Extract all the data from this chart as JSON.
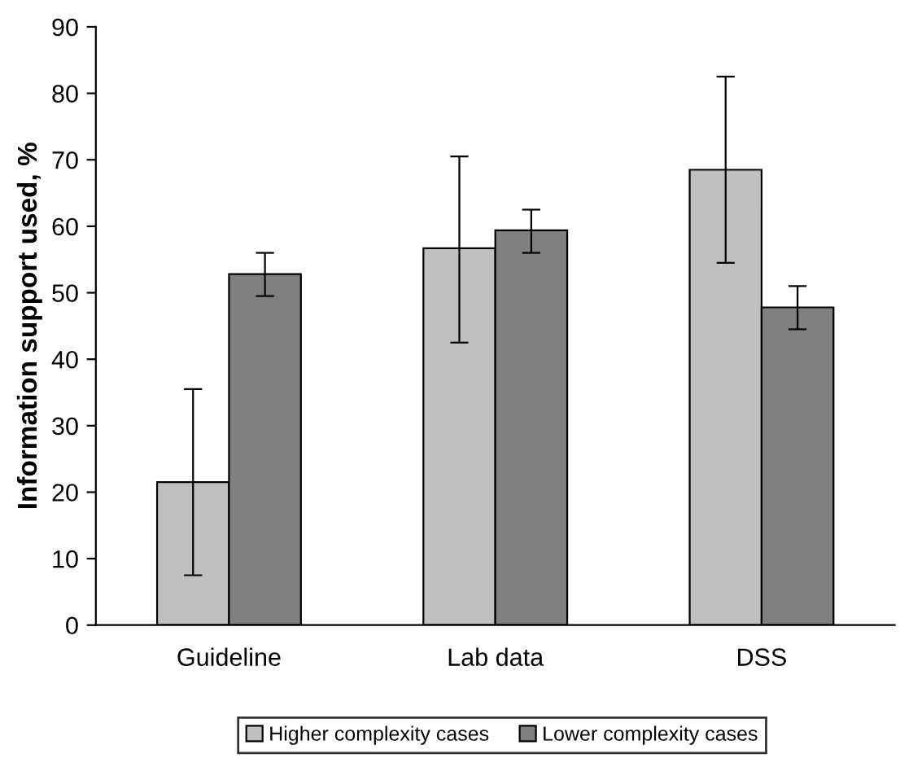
{
  "chart_data": {
    "type": "bar",
    "ylabel": "Information support used, %",
    "categories": [
      "Guideline",
      "Lab data",
      "DSS"
    ],
    "series": [
      {
        "name": "Higher complexity cases",
        "color": "#c0c0c0",
        "values": [
          21.5,
          56.7,
          68.5
        ],
        "errors": [
          [
            7.5,
            35.5
          ],
          [
            42.5,
            70.5
          ],
          [
            54.5,
            82.5
          ]
        ]
      },
      {
        "name": "Lower complexity cases",
        "color": "#808080",
        "values": [
          52.8,
          59.4,
          47.8
        ],
        "errors": [
          [
            49.5,
            56
          ],
          [
            56,
            62.5
          ],
          [
            44.5,
            51
          ]
        ]
      }
    ],
    "ylim": [
      0,
      90
    ],
    "yticks": [
      0,
      10,
      20,
      30,
      40,
      50,
      60,
      70,
      80,
      90
    ],
    "grid": false,
    "legend": "bottom"
  }
}
